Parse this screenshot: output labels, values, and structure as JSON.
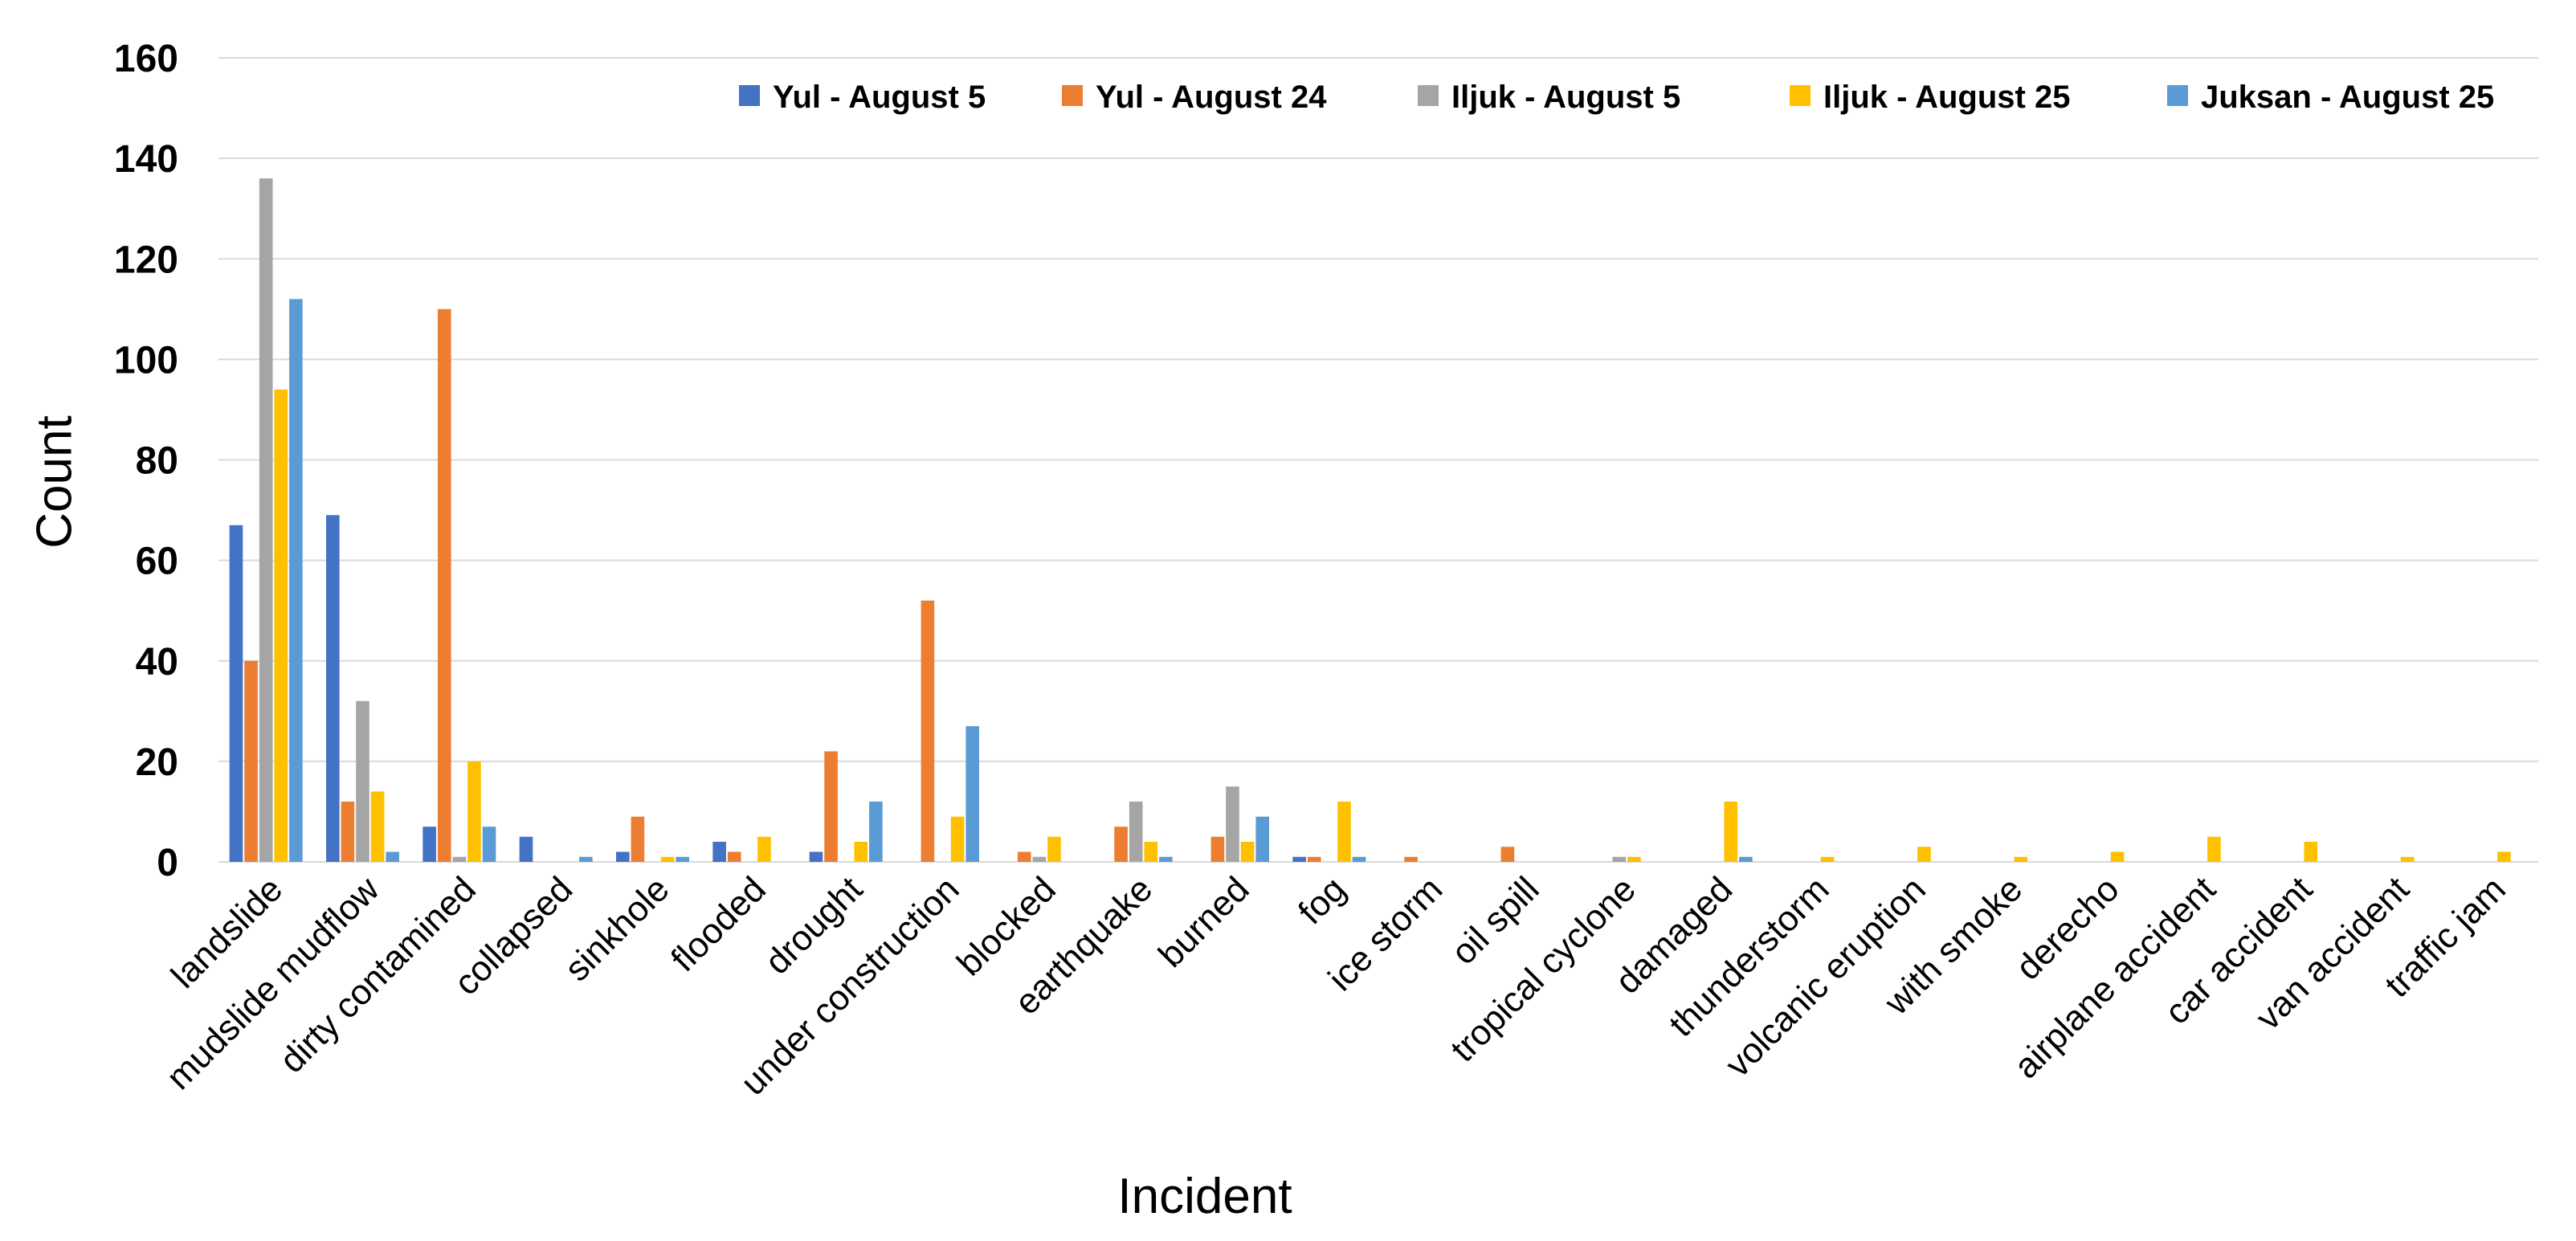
{
  "chart_data": {
    "type": "bar",
    "title": "",
    "xlabel": "Incident",
    "ylabel": "Count",
    "ylim": [
      0,
      160
    ],
    "yticks": [
      0,
      20,
      40,
      60,
      80,
      100,
      120,
      140,
      160
    ],
    "grid": true,
    "legend_position": "top-right",
    "categories": [
      "landslide",
      "mudslide mudflow",
      "dirty contamined",
      "collapsed",
      "sinkhole",
      "flooded",
      "drought",
      "under construction",
      "blocked",
      "earthquake",
      "burned",
      "fog",
      "ice storm",
      "oil spill",
      "tropical cyclone",
      "damaged",
      "thunderstorm",
      "volcanic eruption",
      "with smoke",
      "derecho",
      "airplane accident",
      "car accident",
      "van accident",
      "traffic jam"
    ],
    "series": [
      {
        "name": "Yul - August 5",
        "color": "#4472C4",
        "values": [
          67,
          69,
          7,
          5,
          2,
          4,
          2,
          0,
          0,
          0,
          0,
          1,
          0,
          0,
          0,
          0,
          0,
          0,
          0,
          0,
          0,
          0,
          0,
          0
        ]
      },
      {
        "name": "Yul - August 24",
        "color": "#ED7D31",
        "values": [
          40,
          12,
          110,
          0,
          9,
          2,
          22,
          52,
          2,
          7,
          5,
          1,
          1,
          3,
          0,
          0,
          0,
          0,
          0,
          0,
          0,
          0,
          0,
          0
        ]
      },
      {
        "name": "Iljuk - August 5",
        "color": "#A5A5A5",
        "values": [
          136,
          32,
          1,
          0,
          0,
          0,
          0,
          0,
          1,
          12,
          15,
          0,
          0,
          0,
          1,
          0,
          0,
          0,
          0,
          0,
          0,
          0,
          0,
          0
        ]
      },
      {
        "name": "Iljuk - August 25",
        "color": "#FFC000",
        "values": [
          94,
          14,
          20,
          0,
          1,
          5,
          4,
          9,
          5,
          4,
          4,
          12,
          0,
          0,
          1,
          12,
          1,
          3,
          1,
          2,
          5,
          4,
          1,
          2
        ]
      },
      {
        "name": "Juksan - August 25",
        "color": "#5B9BD5",
        "values": [
          112,
          2,
          7,
          1,
          1,
          0,
          12,
          27,
          0,
          1,
          9,
          1,
          0,
          0,
          0,
          1,
          0,
          0,
          0,
          0,
          0,
          0,
          0,
          0
        ]
      }
    ]
  }
}
